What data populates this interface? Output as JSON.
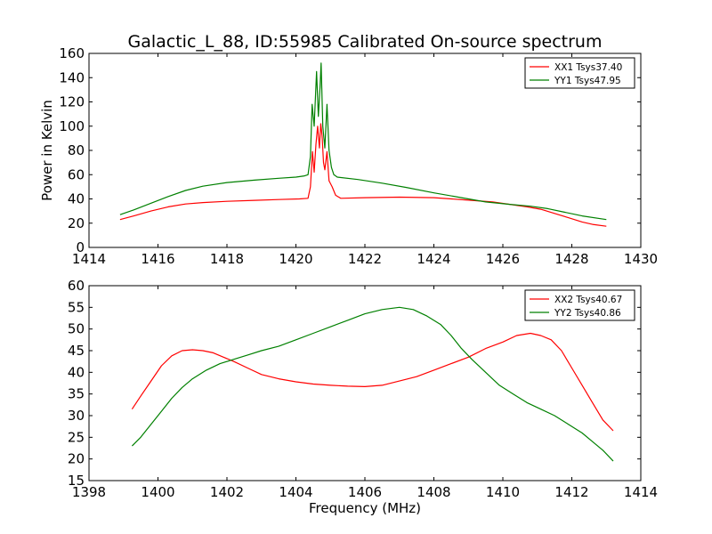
{
  "figure_title": "Galactic_L_88, ID:55985 Calibrated On-source spectrum",
  "chart_data": [
    {
      "type": "line",
      "xlabel": "",
      "ylabel": "Power in Kelvin",
      "xlim": [
        1414,
        1430
      ],
      "ylim": [
        0,
        160
      ],
      "xticks": [
        1414,
        1416,
        1418,
        1420,
        1422,
        1424,
        1426,
        1428,
        1430
      ],
      "yticks": [
        0,
        20,
        40,
        60,
        80,
        100,
        120,
        140,
        160
      ],
      "legend_position": "top-right",
      "grid": false,
      "series": [
        {
          "name": "XX1 Tsys37.40",
          "color": "#ff0000",
          "points": [
            [
              1414.9,
              23
            ],
            [
              1415.3,
              26
            ],
            [
              1415.8,
              30
            ],
            [
              1416.3,
              33.5
            ],
            [
              1416.8,
              35.8
            ],
            [
              1417.3,
              37
            ],
            [
              1418.0,
              38
            ],
            [
              1418.8,
              38.8
            ],
            [
              1419.5,
              39.5
            ],
            [
              1420.1,
              40
            ],
            [
              1420.35,
              40.5
            ],
            [
              1420.42,
              50
            ],
            [
              1420.48,
              79
            ],
            [
              1420.53,
              62
            ],
            [
              1420.58,
              85
            ],
            [
              1420.63,
              100
            ],
            [
              1420.68,
              82
            ],
            [
              1420.72,
              102
            ],
            [
              1420.76,
              92
            ],
            [
              1420.8,
              70
            ],
            [
              1420.84,
              64
            ],
            [
              1420.9,
              79
            ],
            [
              1420.96,
              55
            ],
            [
              1421.05,
              50
            ],
            [
              1421.15,
              43
            ],
            [
              1421.3,
              40.5
            ],
            [
              1422.0,
              41
            ],
            [
              1423.0,
              41.5
            ],
            [
              1424.0,
              41
            ],
            [
              1425.0,
              39
            ],
            [
              1425.7,
              37.5
            ],
            [
              1426.2,
              35.5
            ],
            [
              1426.7,
              33.5
            ],
            [
              1427.1,
              31.5
            ],
            [
              1427.5,
              28
            ],
            [
              1427.9,
              24.5
            ],
            [
              1428.3,
              21
            ],
            [
              1428.6,
              19
            ],
            [
              1429.0,
              17.5
            ]
          ]
        },
        {
          "name": "YY1 Tsys47.95",
          "color": "#008000",
          "points": [
            [
              1414.9,
              27
            ],
            [
              1415.3,
              31
            ],
            [
              1415.8,
              36.5
            ],
            [
              1416.3,
              42
            ],
            [
              1416.8,
              47
            ],
            [
              1417.3,
              50.5
            ],
            [
              1418.0,
              53.5
            ],
            [
              1418.8,
              55.5
            ],
            [
              1419.5,
              57
            ],
            [
              1420.0,
              58
            ],
            [
              1420.25,
              59
            ],
            [
              1420.35,
              60
            ],
            [
              1420.42,
              75
            ],
            [
              1420.47,
              118
            ],
            [
              1420.53,
              100
            ],
            [
              1420.6,
              145
            ],
            [
              1420.65,
              108
            ],
            [
              1420.7,
              132
            ],
            [
              1420.73,
              152
            ],
            [
              1420.78,
              100
            ],
            [
              1420.84,
              82
            ],
            [
              1420.9,
              118
            ],
            [
              1420.96,
              80
            ],
            [
              1421.03,
              66
            ],
            [
              1421.1,
              60
            ],
            [
              1421.2,
              58
            ],
            [
              1421.8,
              56
            ],
            [
              1422.5,
              53
            ],
            [
              1423.2,
              49.5
            ],
            [
              1424.0,
              45
            ],
            [
              1424.8,
              41
            ],
            [
              1425.5,
              37.5
            ],
            [
              1426.2,
              35.5
            ],
            [
              1426.8,
              34
            ],
            [
              1427.3,
              32
            ],
            [
              1427.8,
              29
            ],
            [
              1428.3,
              26
            ],
            [
              1429.0,
              23
            ]
          ]
        }
      ]
    },
    {
      "type": "line",
      "xlabel": "Frequency (MHz)",
      "ylabel": "",
      "xlim": [
        1398,
        1414
      ],
      "ylim": [
        15,
        60
      ],
      "xticks": [
        1398,
        1400,
        1402,
        1404,
        1406,
        1408,
        1410,
        1412,
        1414
      ],
      "yticks": [
        15,
        20,
        25,
        30,
        35,
        40,
        45,
        50,
        55,
        60
      ],
      "legend_position": "top-right",
      "grid": false,
      "series": [
        {
          "name": "XX2 Tsys40.67",
          "color": "#ff0000",
          "points": [
            [
              1399.25,
              31.5
            ],
            [
              1399.5,
              34.5
            ],
            [
              1399.8,
              38
            ],
            [
              1400.1,
              41.5
            ],
            [
              1400.4,
              43.8
            ],
            [
              1400.7,
              45
            ],
            [
              1401.0,
              45.2
            ],
            [
              1401.3,
              45
            ],
            [
              1401.6,
              44.5
            ],
            [
              1401.9,
              43.5
            ],
            [
              1402.2,
              42.5
            ],
            [
              1402.6,
              41
            ],
            [
              1403.0,
              39.5
            ],
            [
              1403.5,
              38.5
            ],
            [
              1404.0,
              37.8
            ],
            [
              1404.5,
              37.3
            ],
            [
              1405.0,
              37
            ],
            [
              1405.5,
              36.8
            ],
            [
              1406.0,
              36.7
            ],
            [
              1406.5,
              37
            ],
            [
              1407.0,
              38
            ],
            [
              1407.5,
              39
            ],
            [
              1408.0,
              40.5
            ],
            [
              1408.5,
              42
            ],
            [
              1409.0,
              43.5
            ],
            [
              1409.5,
              45.5
            ],
            [
              1410.0,
              47
            ],
            [
              1410.4,
              48.5
            ],
            [
              1410.8,
              49
            ],
            [
              1411.1,
              48.5
            ],
            [
              1411.4,
              47.5
            ],
            [
              1411.7,
              45
            ],
            [
              1412.0,
              41
            ],
            [
              1412.3,
              37
            ],
            [
              1412.6,
              33
            ],
            [
              1412.9,
              29
            ],
            [
              1413.2,
              26.5
            ]
          ]
        },
        {
          "name": "YY2 Tsys40.86",
          "color": "#008000",
          "points": [
            [
              1399.25,
              23
            ],
            [
              1399.5,
              25
            ],
            [
              1399.8,
              28
            ],
            [
              1400.1,
              31
            ],
            [
              1400.4,
              34
            ],
            [
              1400.7,
              36.5
            ],
            [
              1401.0,
              38.5
            ],
            [
              1401.4,
              40.5
            ],
            [
              1401.8,
              42
            ],
            [
              1402.2,
              43
            ],
            [
              1402.6,
              44
            ],
            [
              1403.0,
              45
            ],
            [
              1403.5,
              46
            ],
            [
              1404.0,
              47.5
            ],
            [
              1404.5,
              49
            ],
            [
              1405.0,
              50.5
            ],
            [
              1405.5,
              52
            ],
            [
              1406.0,
              53.5
            ],
            [
              1406.5,
              54.5
            ],
            [
              1407.0,
              55
            ],
            [
              1407.4,
              54.5
            ],
            [
              1407.8,
              53
            ],
            [
              1408.2,
              51
            ],
            [
              1408.5,
              48.5
            ],
            [
              1408.8,
              45.5
            ],
            [
              1409.1,
              43
            ],
            [
              1409.5,
              40
            ],
            [
              1409.9,
              37
            ],
            [
              1410.3,
              35
            ],
            [
              1410.7,
              33
            ],
            [
              1411.1,
              31.5
            ],
            [
              1411.5,
              30
            ],
            [
              1411.9,
              28
            ],
            [
              1412.3,
              26
            ],
            [
              1412.6,
              24
            ],
            [
              1412.9,
              22
            ],
            [
              1413.2,
              19.5
            ]
          ]
        }
      ]
    }
  ]
}
